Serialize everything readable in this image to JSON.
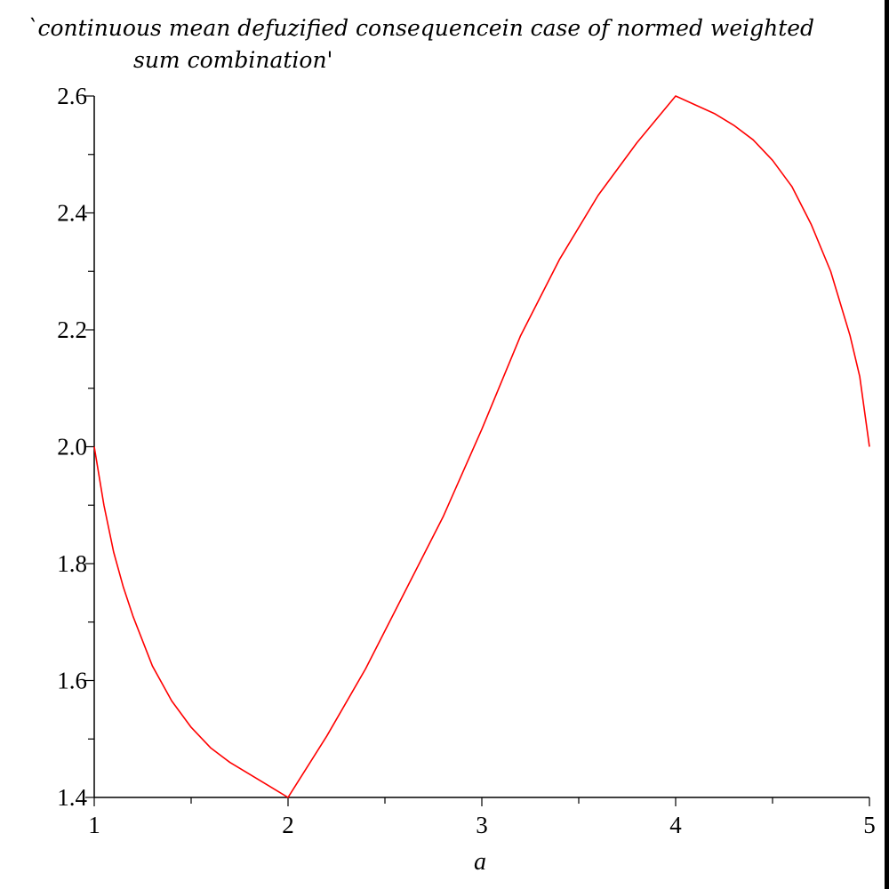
{
  "chart_data": {
    "type": "line",
    "title_lines": [
      "`continuous mean defuzified consequencein case of normed weighted",
      "sum combination'"
    ],
    "xlabel": "a",
    "ylabel": "",
    "xlim": [
      1,
      5
    ],
    "ylim": [
      1.4,
      2.6
    ],
    "x_ticks": [
      1,
      2,
      3,
      4,
      5
    ],
    "x_tick_labels": [
      "1",
      "2",
      "3",
      "4",
      "5"
    ],
    "x_minor_step": 0.5,
    "y_ticks": [
      1.4,
      1.6,
      1.8,
      2.0,
      2.2,
      2.4,
      2.6
    ],
    "y_tick_labels": [
      "1.4",
      "1.6",
      "1.8",
      "2.0",
      "2.2",
      "2.4",
      "2.6"
    ],
    "y_minor_step": 0.1,
    "grid": false,
    "legend": "none",
    "series": [
      {
        "color": "#ff0000",
        "x": [
          1.0,
          1.05,
          1.1,
          1.15,
          1.2,
          1.3,
          1.4,
          1.5,
          1.6,
          1.7,
          1.8,
          1.9,
          2.0,
          2.2,
          2.4,
          2.6,
          2.8,
          3.0,
          3.2,
          3.4,
          3.6,
          3.8,
          4.0,
          4.1,
          4.2,
          4.3,
          4.4,
          4.5,
          4.6,
          4.7,
          4.8,
          4.9,
          4.95,
          5.0
        ],
        "y": [
          2.0,
          1.9,
          1.82,
          1.76,
          1.71,
          1.625,
          1.565,
          1.52,
          1.485,
          1.46,
          1.44,
          1.42,
          1.4,
          1.505,
          1.62,
          1.75,
          1.88,
          2.03,
          2.19,
          2.32,
          2.43,
          2.52,
          2.6,
          2.585,
          2.57,
          2.55,
          2.525,
          2.49,
          2.445,
          2.38,
          2.3,
          2.19,
          2.12,
          2.0
        ]
      }
    ]
  }
}
